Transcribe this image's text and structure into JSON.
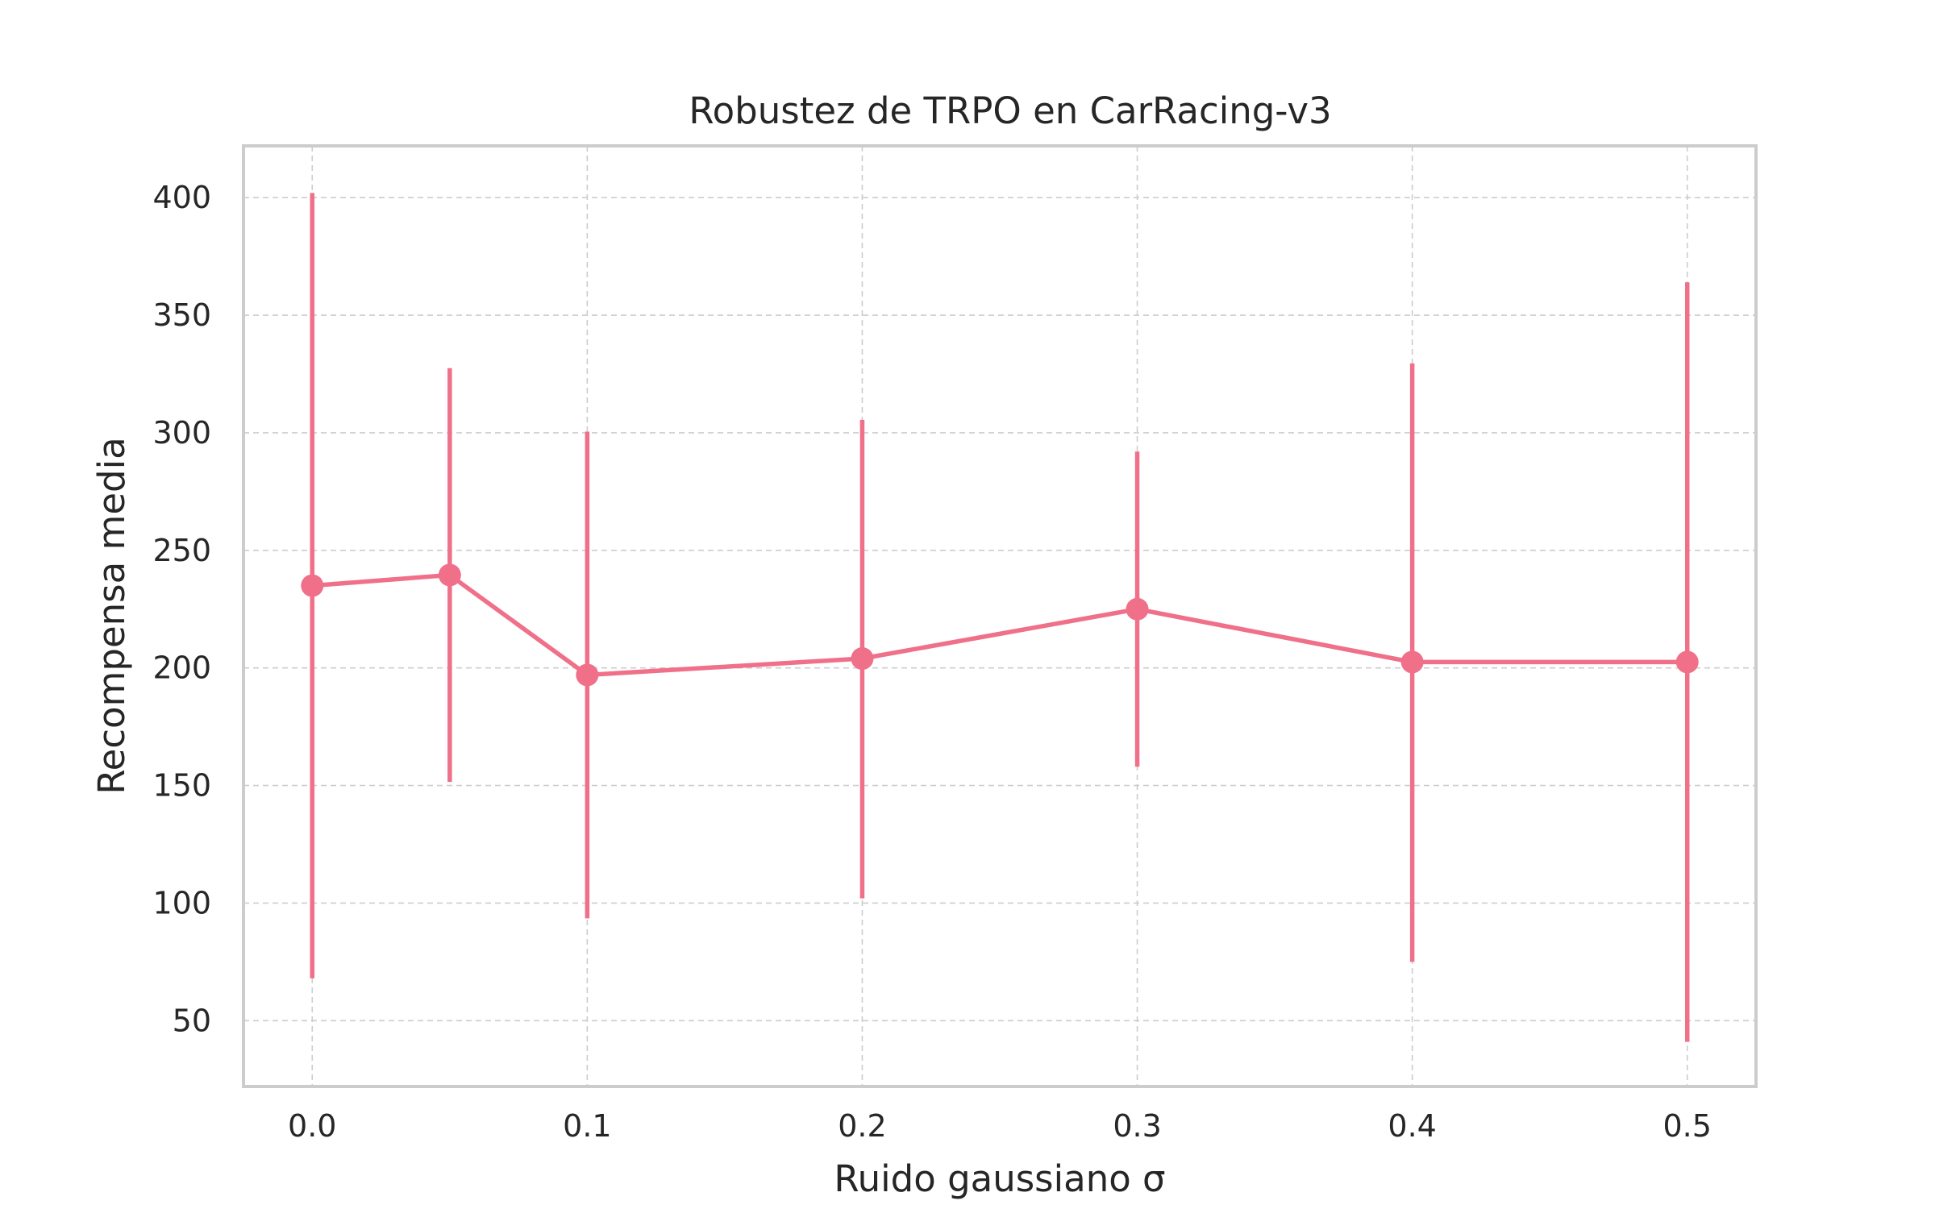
{
  "chart_data": {
    "type": "line",
    "title": "Robustez de TRPO en CarRacing-v3",
    "xlabel": "Ruido gaussiano σ",
    "ylabel": "Recompensa media",
    "xlim": [
      -0.025,
      0.525
    ],
    "ylim": [
      22,
      422
    ],
    "xticks": [
      0.0,
      0.1,
      0.2,
      0.3,
      0.4,
      0.5
    ],
    "xtick_labels": [
      "0.0",
      "0.1",
      "0.2",
      "0.3",
      "0.4",
      "0.5"
    ],
    "yticks": [
      50,
      100,
      150,
      200,
      250,
      300,
      350,
      400
    ],
    "ytick_labels": [
      "50",
      "100",
      "150",
      "200",
      "250",
      "300",
      "350",
      "400"
    ],
    "grid": true,
    "series": [
      {
        "color": "#f07089",
        "x": [
          0.0,
          0.05,
          0.1,
          0.2,
          0.3,
          0.4,
          0.5
        ],
        "y": [
          235,
          239.5,
          197,
          204,
          225,
          202.5,
          202.5
        ],
        "y_low": [
          68,
          151.5,
          93.5,
          102,
          158,
          75,
          41
        ],
        "y_high": [
          402,
          327.5,
          300.5,
          305.5,
          292,
          329.5,
          364
        ]
      }
    ]
  }
}
